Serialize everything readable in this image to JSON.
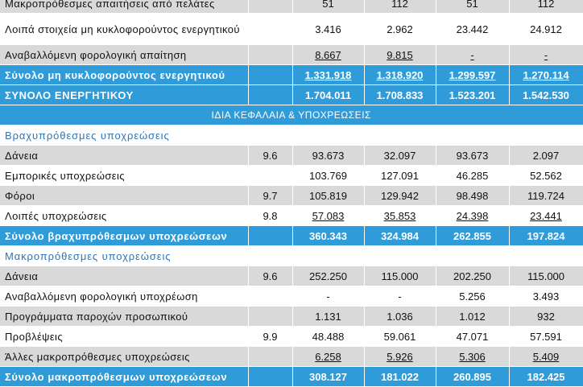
{
  "rows": [
    {
      "type": "data",
      "style": "gray",
      "label": "Μακροπρόθεσμες απαιτήσεις από πελάτες",
      "note": "",
      "values": [
        "51",
        "112",
        "51",
        "112"
      ],
      "underline": false
    },
    {
      "type": "data",
      "style": "white",
      "tall": true,
      "label": "Λοιπά στοιχεία μη κυκλοφορούντος ενεργητικού",
      "note": "",
      "values": [
        "3.416",
        "2.962",
        "23.442",
        "24.912"
      ],
      "underline": false
    },
    {
      "type": "data",
      "style": "gray",
      "label": "Αναβαλλόμενη φορολογική απαίτηση",
      "note": "",
      "values": [
        "8.667",
        "9.815",
        "-",
        "-"
      ],
      "underline": true
    },
    {
      "type": "total",
      "label": "Σύνολο μη κυκλοφορούντος ενεργητικού",
      "values": [
        "1.331.918",
        "1.318.920",
        "1.299.597",
        "1.270.114"
      ],
      "underline": true
    },
    {
      "type": "total",
      "label": "ΣΥΝΟΛΟ ΕΝΕΡΓΗΤΙΚΟΥ",
      "values": [
        "1.704.011",
        "1.708.833",
        "1.523.201",
        "1.542.530"
      ],
      "underline": false
    },
    {
      "type": "header",
      "label": "ΙΔΙΑ ΚΕΦΑΛΑΙΑ & ΥΠΟΧΡΕΩΣΕΙΣ"
    },
    {
      "type": "section",
      "label": "Βραχυπρόθεσμες υποχρεώσεις"
    },
    {
      "type": "data",
      "style": "gray",
      "label": "Δάνεια",
      "note": "9.6",
      "values": [
        "93.673",
        "32.097",
        "93.673",
        "2.097"
      ],
      "underline": false
    },
    {
      "type": "data",
      "style": "white",
      "label": "Εμπορικές υποχρεώσεις",
      "note": "",
      "values": [
        "103.769",
        "127.091",
        "46.285",
        "52.562"
      ],
      "underline": false
    },
    {
      "type": "data",
      "style": "gray",
      "label": "Φόροι",
      "note": "9.7",
      "values": [
        "105.819",
        "129.942",
        "98.498",
        "119.724"
      ],
      "underline": false
    },
    {
      "type": "data",
      "style": "white",
      "label": "Λοιπές υποχρεώσεις",
      "note": "9.8",
      "values": [
        "57.083",
        "35.853",
        "24.398",
        "23.441"
      ],
      "underline": true
    },
    {
      "type": "total",
      "label": "Σύνολο βραχυπρόθεσμων υποχρεώσεων",
      "values": [
        "360.343",
        "324.984",
        "262.855",
        "197.824"
      ],
      "underline": false
    },
    {
      "type": "section",
      "label": "Μακροπρόθεσμες υποχρεώσεις"
    },
    {
      "type": "data",
      "style": "gray",
      "label": "Δάνεια",
      "note": "9.6",
      "values": [
        "252.250",
        "115.000",
        "202.250",
        "115.000"
      ],
      "underline": false
    },
    {
      "type": "data",
      "style": "white",
      "label": "Αναβαλλόμενη φορολογική υποχρέωση",
      "note": "",
      "values": [
        "-",
        "-",
        "5.256",
        "3.493"
      ],
      "underline": false
    },
    {
      "type": "data",
      "style": "gray",
      "label": "Προγράμματα παροχών προσωπικού",
      "note": "",
      "values": [
        "1.131",
        "1.036",
        "1.012",
        "932"
      ],
      "underline": false
    },
    {
      "type": "data",
      "style": "white",
      "label": "Προβλέψεις",
      "note": "9.9",
      "values": [
        "48.488",
        "59.061",
        "47.071",
        "57.591"
      ],
      "underline": false
    },
    {
      "type": "data",
      "style": "gray",
      "label": "Άλλες μακροπρόθεσμες υποχρεώσεις",
      "note": "",
      "values": [
        "6.258",
        "5.926",
        "5.306",
        "5.409"
      ],
      "underline": true
    },
    {
      "type": "total",
      "label": "Σύνολο μακροπρόθεσμων υποχρεώσεων",
      "values": [
        "308.127",
        "181.022",
        "260.895",
        "182.425"
      ],
      "underline": false
    }
  ]
}
